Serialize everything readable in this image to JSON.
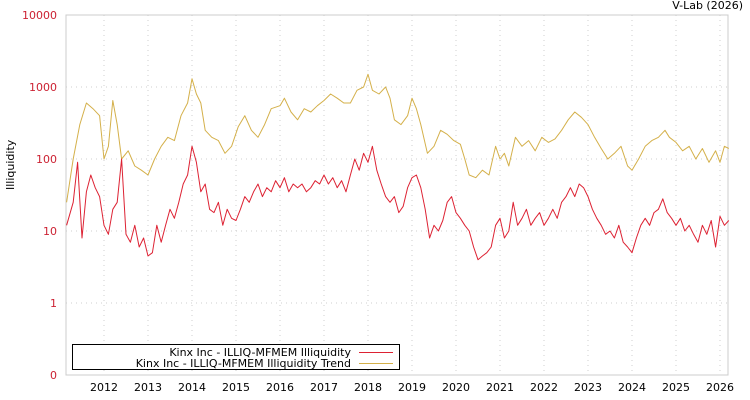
{
  "header": {
    "credit": "V-Lab (2026)"
  },
  "axes": {
    "ylabel": "Illiquidity",
    "yticks": [
      "10000",
      "1000",
      "100",
      "10",
      "1",
      "0"
    ],
    "xticks": [
      "2012",
      "2013",
      "2014",
      "2015",
      "2016",
      "2017",
      "2018",
      "2019",
      "2020",
      "2021",
      "2022",
      "2023",
      "2024",
      "2025",
      "2026"
    ]
  },
  "legend": {
    "items": [
      {
        "label": "Kinx Inc - ILLIQ-MFMEM Illiquidity",
        "color": "#dd2233"
      },
      {
        "label": "Kinx Inc - ILLIQ-MFMEM Illiquidity Trend",
        "color": "#d4b04a"
      }
    ]
  },
  "chart_data": {
    "type": "line",
    "title": "",
    "xlabel": "",
    "ylabel": "Illiquidity",
    "yscale": "log",
    "ylim": [
      0.1,
      10000
    ],
    "xlim": [
      2011.15,
      2026.2
    ],
    "grid": true,
    "legend_position": "bottom-left",
    "series": [
      {
        "name": "Kinx Inc - ILLIQ-MFMEM Illiquidity",
        "color": "#dd2233",
        "points": [
          [
            2011.15,
            12
          ],
          [
            2011.3,
            25
          ],
          [
            2011.4,
            90
          ],
          [
            2011.5,
            8
          ],
          [
            2011.6,
            35
          ],
          [
            2011.7,
            60
          ],
          [
            2011.8,
            40
          ],
          [
            2011.9,
            30
          ],
          [
            2012.0,
            12
          ],
          [
            2012.1,
            9
          ],
          [
            2012.2,
            20
          ],
          [
            2012.3,
            25
          ],
          [
            2012.4,
            100
          ],
          [
            2012.5,
            9
          ],
          [
            2012.6,
            7
          ],
          [
            2012.7,
            12
          ],
          [
            2012.8,
            6
          ],
          [
            2012.9,
            8
          ],
          [
            2013.0,
            4.5
          ],
          [
            2013.1,
            5
          ],
          [
            2013.2,
            12
          ],
          [
            2013.3,
            7
          ],
          [
            2013.4,
            12
          ],
          [
            2013.5,
            20
          ],
          [
            2013.6,
            15
          ],
          [
            2013.7,
            25
          ],
          [
            2013.8,
            45
          ],
          [
            2013.9,
            60
          ],
          [
            2014.0,
            150
          ],
          [
            2014.1,
            90
          ],
          [
            2014.2,
            35
          ],
          [
            2014.3,
            45
          ],
          [
            2014.4,
            20
          ],
          [
            2014.5,
            18
          ],
          [
            2014.6,
            25
          ],
          [
            2014.7,
            12
          ],
          [
            2014.8,
            20
          ],
          [
            2014.9,
            15
          ],
          [
            2015.0,
            14
          ],
          [
            2015.1,
            20
          ],
          [
            2015.2,
            30
          ],
          [
            2015.3,
            25
          ],
          [
            2015.4,
            35
          ],
          [
            2015.5,
            45
          ],
          [
            2015.6,
            30
          ],
          [
            2015.7,
            40
          ],
          [
            2015.8,
            35
          ],
          [
            2015.9,
            50
          ],
          [
            2016.0,
            40
          ],
          [
            2016.1,
            55
          ],
          [
            2016.2,
            35
          ],
          [
            2016.3,
            45
          ],
          [
            2016.4,
            40
          ],
          [
            2016.5,
            45
          ],
          [
            2016.6,
            35
          ],
          [
            2016.7,
            40
          ],
          [
            2016.8,
            50
          ],
          [
            2016.9,
            45
          ],
          [
            2017.0,
            60
          ],
          [
            2017.1,
            45
          ],
          [
            2017.2,
            55
          ],
          [
            2017.3,
            40
          ],
          [
            2017.4,
            50
          ],
          [
            2017.5,
            35
          ],
          [
            2017.6,
            60
          ],
          [
            2017.7,
            100
          ],
          [
            2017.8,
            70
          ],
          [
            2017.9,
            120
          ],
          [
            2018.0,
            90
          ],
          [
            2018.1,
            150
          ],
          [
            2018.2,
            70
          ],
          [
            2018.3,
            45
          ],
          [
            2018.4,
            30
          ],
          [
            2018.5,
            25
          ],
          [
            2018.6,
            30
          ],
          [
            2018.7,
            18
          ],
          [
            2018.8,
            22
          ],
          [
            2018.9,
            40
          ],
          [
            2019.0,
            55
          ],
          [
            2019.1,
            60
          ],
          [
            2019.2,
            40
          ],
          [
            2019.3,
            20
          ],
          [
            2019.4,
            8
          ],
          [
            2019.5,
            12
          ],
          [
            2019.6,
            10
          ],
          [
            2019.7,
            14
          ],
          [
            2019.8,
            25
          ],
          [
            2019.9,
            30
          ],
          [
            2020.0,
            18
          ],
          [
            2020.1,
            15
          ],
          [
            2020.2,
            12
          ],
          [
            2020.3,
            10
          ],
          [
            2020.4,
            6
          ],
          [
            2020.5,
            4
          ],
          [
            2020.6,
            4.5
          ],
          [
            2020.7,
            5
          ],
          [
            2020.8,
            6
          ],
          [
            2020.9,
            12
          ],
          [
            2021.0,
            15
          ],
          [
            2021.1,
            8
          ],
          [
            2021.2,
            10
          ],
          [
            2021.3,
            25
          ],
          [
            2021.4,
            12
          ],
          [
            2021.5,
            15
          ],
          [
            2021.6,
            20
          ],
          [
            2021.7,
            12
          ],
          [
            2021.8,
            15
          ],
          [
            2021.9,
            18
          ],
          [
            2022.0,
            12
          ],
          [
            2022.1,
            15
          ],
          [
            2022.2,
            20
          ],
          [
            2022.3,
            15
          ],
          [
            2022.4,
            25
          ],
          [
            2022.5,
            30
          ],
          [
            2022.6,
            40
          ],
          [
            2022.7,
            30
          ],
          [
            2022.8,
            45
          ],
          [
            2022.9,
            40
          ],
          [
            2023.0,
            30
          ],
          [
            2023.1,
            20
          ],
          [
            2023.2,
            15
          ],
          [
            2023.3,
            12
          ],
          [
            2023.4,
            9
          ],
          [
            2023.5,
            10
          ],
          [
            2023.6,
            8
          ],
          [
            2023.7,
            12
          ],
          [
            2023.8,
            7
          ],
          [
            2023.9,
            6
          ],
          [
            2024.0,
            5
          ],
          [
            2024.1,
            8
          ],
          [
            2024.2,
            12
          ],
          [
            2024.3,
            15
          ],
          [
            2024.4,
            12
          ],
          [
            2024.5,
            18
          ],
          [
            2024.6,
            20
          ],
          [
            2024.7,
            28
          ],
          [
            2024.8,
            18
          ],
          [
            2024.9,
            15
          ],
          [
            2025.0,
            12
          ],
          [
            2025.1,
            15
          ],
          [
            2025.2,
            10
          ],
          [
            2025.3,
            12
          ],
          [
            2025.4,
            9
          ],
          [
            2025.5,
            7
          ],
          [
            2025.6,
            12
          ],
          [
            2025.7,
            9
          ],
          [
            2025.8,
            14
          ],
          [
            2025.9,
            6
          ],
          [
            2026.0,
            16
          ],
          [
            2026.1,
            12
          ],
          [
            2026.2,
            14
          ]
        ]
      },
      {
        "name": "Kinx Inc - ILLIQ-MFMEM Illiquidity Trend",
        "color": "#d4b04a",
        "points": [
          [
            2011.15,
            25
          ],
          [
            2011.3,
            100
          ],
          [
            2011.45,
            300
          ],
          [
            2011.6,
            600
          ],
          [
            2011.75,
            500
          ],
          [
            2011.9,
            400
          ],
          [
            2012.0,
            100
          ],
          [
            2012.1,
            150
          ],
          [
            2012.2,
            650
          ],
          [
            2012.3,
            300
          ],
          [
            2012.4,
            100
          ],
          [
            2012.55,
            130
          ],
          [
            2012.7,
            80
          ],
          [
            2012.85,
            70
          ],
          [
            2013.0,
            60
          ],
          [
            2013.15,
            100
          ],
          [
            2013.3,
            150
          ],
          [
            2013.45,
            200
          ],
          [
            2013.6,
            180
          ],
          [
            2013.75,
            400
          ],
          [
            2013.9,
            600
          ],
          [
            2014.0,
            1300
          ],
          [
            2014.1,
            800
          ],
          [
            2014.2,
            600
          ],
          [
            2014.3,
            250
          ],
          [
            2014.45,
            200
          ],
          [
            2014.6,
            180
          ],
          [
            2014.75,
            120
          ],
          [
            2014.9,
            150
          ],
          [
            2015.05,
            280
          ],
          [
            2015.2,
            400
          ],
          [
            2015.35,
            250
          ],
          [
            2015.5,
            200
          ],
          [
            2015.65,
            300
          ],
          [
            2015.8,
            500
          ],
          [
            2016.0,
            550
          ],
          [
            2016.1,
            700
          ],
          [
            2016.25,
            450
          ],
          [
            2016.4,
            350
          ],
          [
            2016.55,
            500
          ],
          [
            2016.7,
            450
          ],
          [
            2016.85,
            550
          ],
          [
            2017.0,
            650
          ],
          [
            2017.15,
            800
          ],
          [
            2017.3,
            700
          ],
          [
            2017.45,
            600
          ],
          [
            2017.6,
            600
          ],
          [
            2017.75,
            900
          ],
          [
            2017.9,
            1000
          ],
          [
            2018.0,
            1500
          ],
          [
            2018.1,
            900
          ],
          [
            2018.25,
            800
          ],
          [
            2018.4,
            1000
          ],
          [
            2018.5,
            700
          ],
          [
            2018.6,
            350
          ],
          [
            2018.75,
            300
          ],
          [
            2018.9,
            400
          ],
          [
            2019.0,
            700
          ],
          [
            2019.1,
            500
          ],
          [
            2019.2,
            300
          ],
          [
            2019.35,
            120
          ],
          [
            2019.5,
            150
          ],
          [
            2019.65,
            250
          ],
          [
            2019.8,
            220
          ],
          [
            2019.95,
            180
          ],
          [
            2020.1,
            160
          ],
          [
            2020.2,
            100
          ],
          [
            2020.3,
            60
          ],
          [
            2020.45,
            55
          ],
          [
            2020.6,
            70
          ],
          [
            2020.75,
            60
          ],
          [
            2020.9,
            150
          ],
          [
            2021.0,
            100
          ],
          [
            2021.1,
            120
          ],
          [
            2021.2,
            80
          ],
          [
            2021.35,
            200
          ],
          [
            2021.5,
            150
          ],
          [
            2021.65,
            180
          ],
          [
            2021.8,
            130
          ],
          [
            2021.95,
            200
          ],
          [
            2022.1,
            170
          ],
          [
            2022.25,
            190
          ],
          [
            2022.4,
            250
          ],
          [
            2022.55,
            350
          ],
          [
            2022.7,
            450
          ],
          [
            2022.85,
            380
          ],
          [
            2023.0,
            300
          ],
          [
            2023.15,
            200
          ],
          [
            2023.3,
            140
          ],
          [
            2023.45,
            100
          ],
          [
            2023.6,
            120
          ],
          [
            2023.75,
            150
          ],
          [
            2023.9,
            80
          ],
          [
            2024.0,
            70
          ],
          [
            2024.15,
            100
          ],
          [
            2024.3,
            150
          ],
          [
            2024.45,
            180
          ],
          [
            2024.6,
            200
          ],
          [
            2024.75,
            250
          ],
          [
            2024.85,
            200
          ],
          [
            2025.0,
            170
          ],
          [
            2025.15,
            130
          ],
          [
            2025.3,
            150
          ],
          [
            2025.45,
            100
          ],
          [
            2025.6,
            140
          ],
          [
            2025.75,
            90
          ],
          [
            2025.9,
            130
          ],
          [
            2026.0,
            90
          ],
          [
            2026.1,
            150
          ],
          [
            2026.2,
            140
          ]
        ]
      }
    ]
  }
}
